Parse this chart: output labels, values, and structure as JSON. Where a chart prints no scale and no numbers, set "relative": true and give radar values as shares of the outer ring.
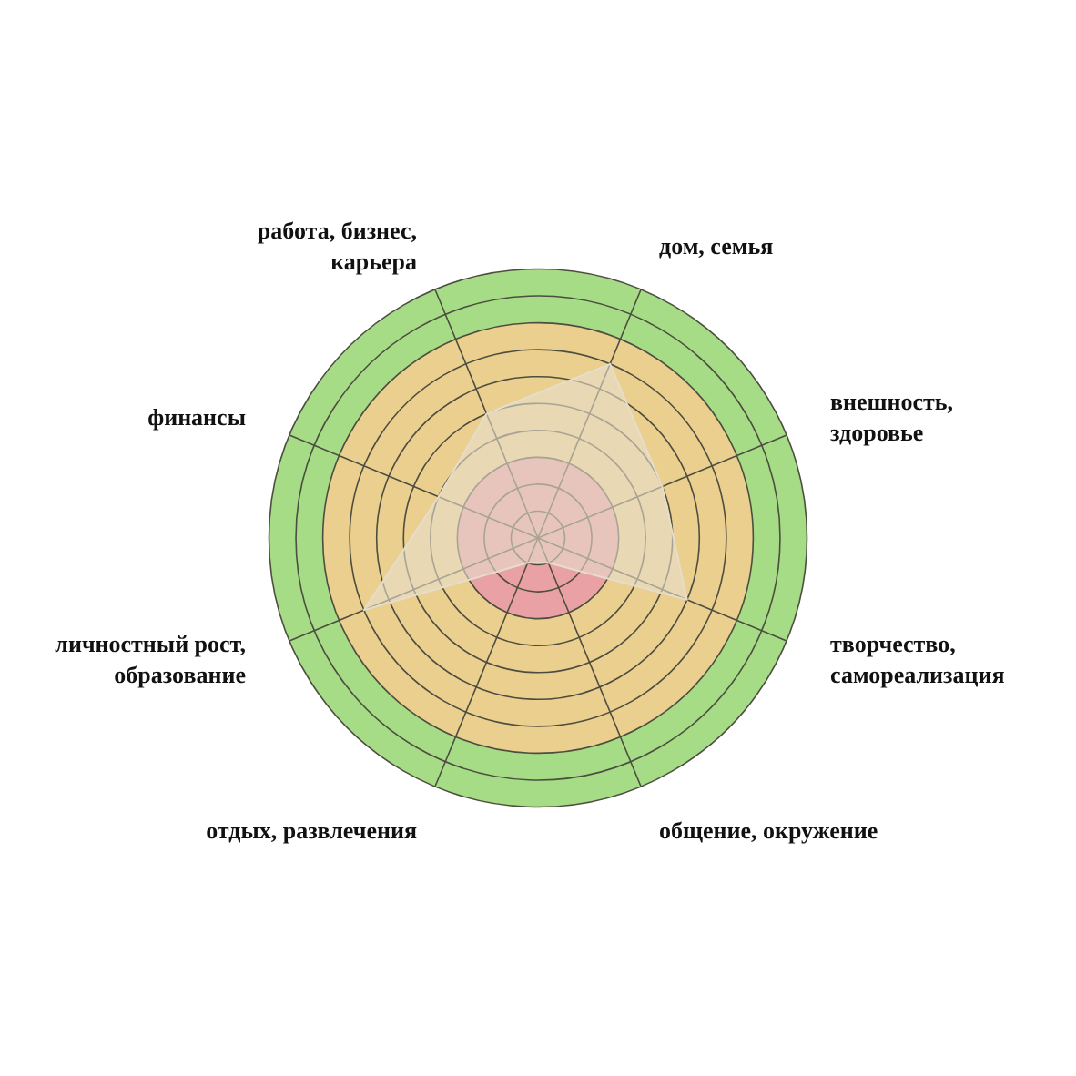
{
  "chart_data": {
    "type": "radar",
    "relative": true,
    "categories": [
      "дом, семья",
      "внешность, здоровье",
      "творчество, самореализация",
      "общение, окружение",
      "отдых, развлечения",
      "личностный рост, образование",
      "финансы",
      "работа, бизнес, карьера"
    ],
    "series": [
      {
        "color": "#e6ddcc",
        "values": [
          0.7,
          0.5,
          0.6,
          0.1,
          0.1,
          0.7,
          0.4,
          0.5
        ]
      }
    ],
    "grid": true
  }
}
